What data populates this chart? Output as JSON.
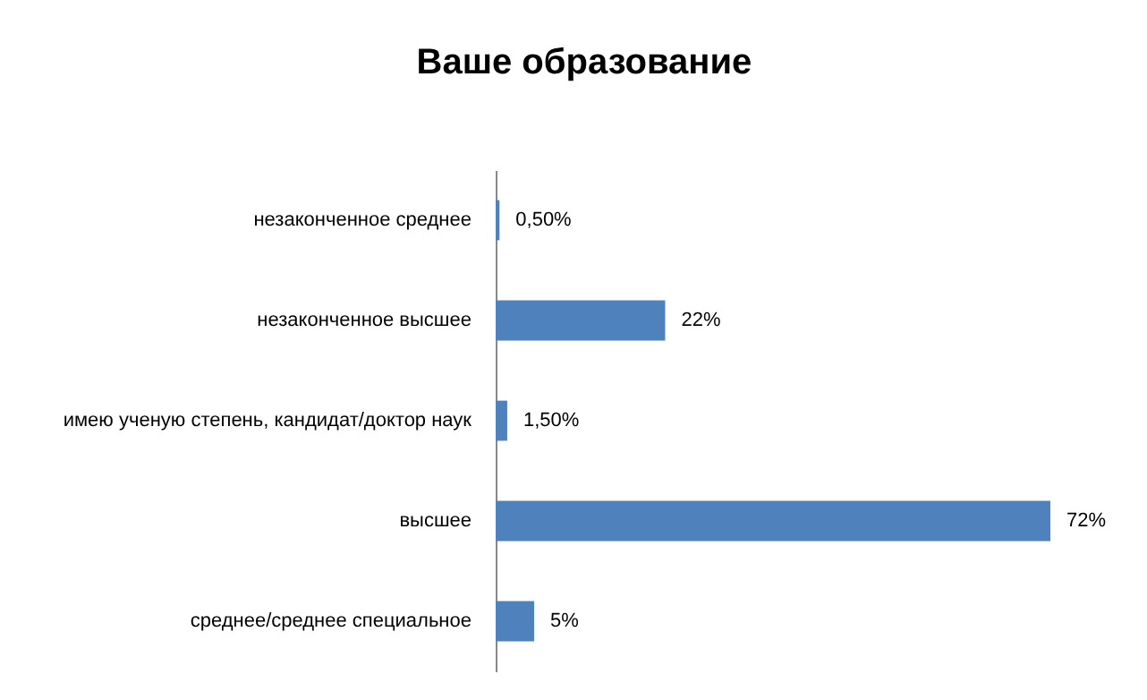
{
  "chart_data": {
    "type": "bar",
    "orientation": "horizontal",
    "title": "Ваше образование",
    "categories": [
      "незаконченное среднее",
      "незаконченное высшее",
      "имею ученую степень, кандидат/доктор наук",
      "высшее",
      "среднее/среднее специальное"
    ],
    "values": [
      0.5,
      22,
      1.5,
      72,
      5
    ],
    "value_labels": [
      "0,50%",
      "22%",
      "1,50%",
      "72%",
      "5%"
    ],
    "color": "#4f81bd"
  }
}
